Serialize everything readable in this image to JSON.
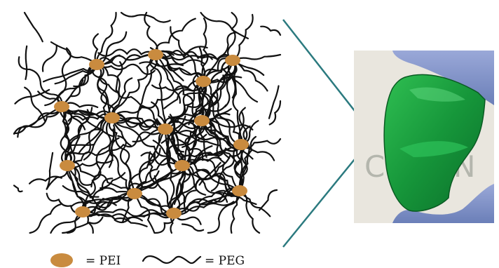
{
  "diagram": {
    "colors": {
      "strand": "#111111",
      "node": "#c98b3f",
      "arrow": "#2b7a7f",
      "gel": "#1f9a3a",
      "glove": "#7f93c6",
      "photo_bg": "#e9e6de"
    },
    "legend": {
      "pei_label": "= PEI",
      "peg_label": "= PEG"
    },
    "photo": {
      "background_text": "CH  AN"
    }
  }
}
